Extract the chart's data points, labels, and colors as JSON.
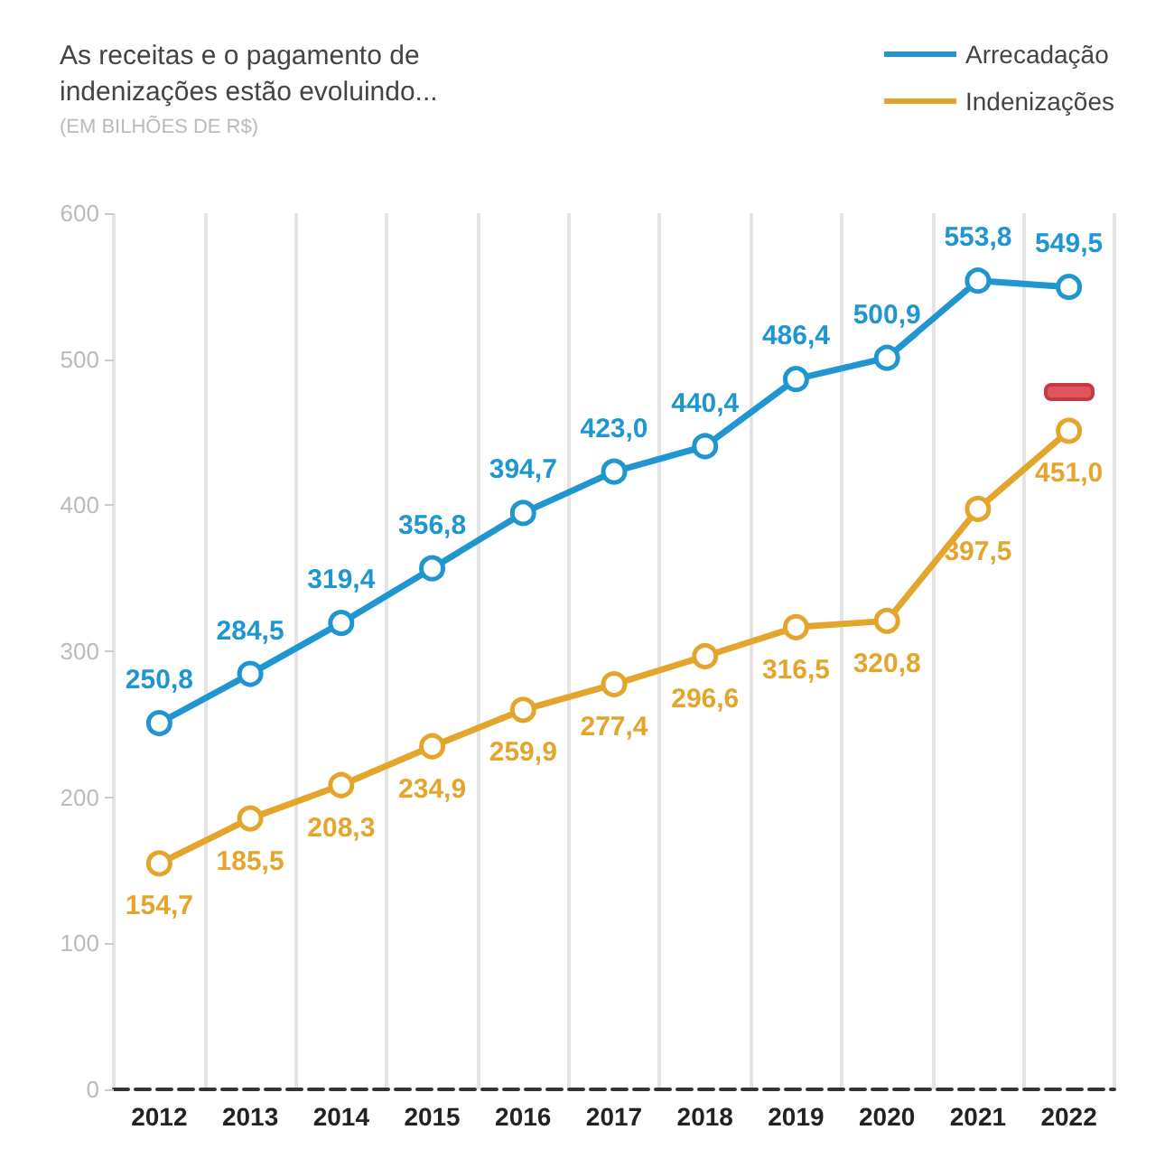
{
  "chart_data": {
    "type": "line",
    "title": "As receitas e o pagamento de indenizações estão evoluindo...",
    "subtitle": "(EM BILHÕES DE R$)",
    "categories": [
      "2012",
      "2013",
      "2014",
      "2015",
      "2016",
      "2017",
      "2018",
      "2019",
      "2020",
      "2021",
      "2022"
    ],
    "series": [
      {
        "name": "Arrecadação",
        "color": "#1f96d0",
        "values": [
          250.8,
          284.5,
          319.4,
          356.8,
          394.7,
          423.0,
          440.4,
          486.4,
          500.9,
          553.8,
          549.5
        ],
        "value_labels": [
          "250,8",
          "284,5",
          "319,4",
          "356,8",
          "394,7",
          "423,0",
          "440,4",
          "486,4",
          "500,9",
          "553,8",
          "549,5"
        ]
      },
      {
        "name": "Indenizações",
        "color": "#e3a52b",
        "values": [
          154.7,
          185.5,
          208.3,
          234.9,
          259.9,
          277.4,
          296.6,
          316.5,
          320.8,
          397.5,
          451.0
        ],
        "value_labels": [
          "154,7",
          "185,5",
          "208,3",
          "234,9",
          "259,9",
          "277,4",
          "296,6",
          "316,5",
          "320,8",
          "397,5",
          "451,0"
        ]
      }
    ],
    "ylim": [
      0,
      600
    ],
    "yticks": [
      0,
      100,
      200,
      300,
      400,
      500,
      600
    ],
    "grid": "x",
    "legend": "top right",
    "marker": "circle",
    "line_style": "solid"
  }
}
